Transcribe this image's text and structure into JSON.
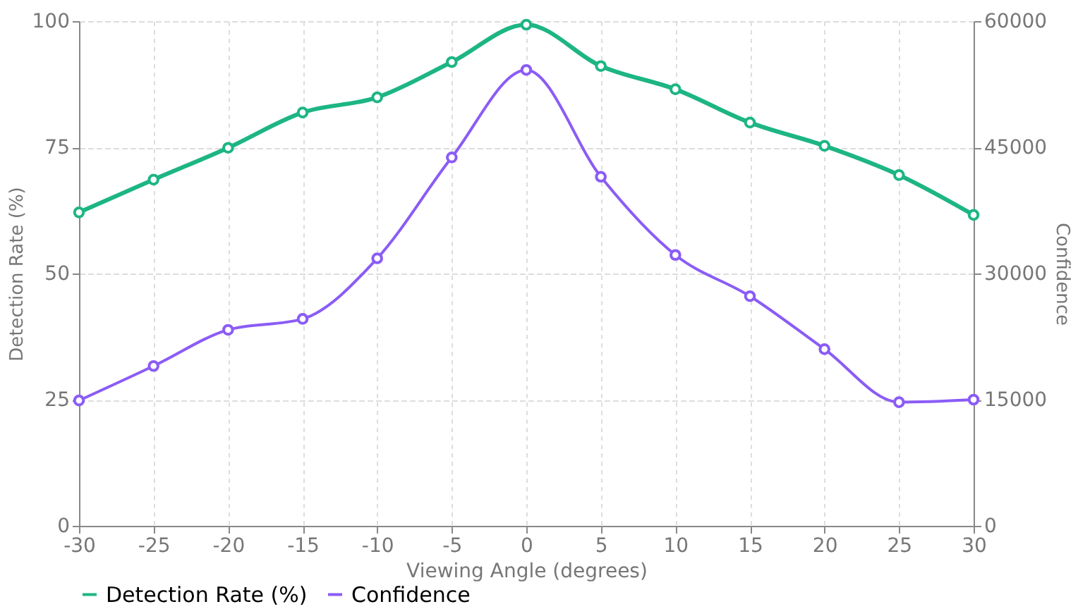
{
  "chart_data": {
    "type": "line",
    "xlabel": "Viewing Angle (degrees)",
    "ylabel": "Detection Rate (%)",
    "y2label": "Confidence",
    "x": [
      -30,
      -25,
      -20,
      -15,
      -10,
      -5,
      0,
      5,
      10,
      15,
      20,
      25,
      30
    ],
    "series": [
      {
        "name": "Detection Rate (%)",
        "color": "#1db584",
        "values": [
          62.1,
          68.6,
          74.9,
          81.9,
          84.9,
          91.9,
          99.3,
          91.1,
          86.5,
          79.9,
          75.3,
          69.5,
          61.6
        ]
      },
      {
        "name": "Confidence",
        "color": "#8b5cf6",
        "axis": "y2",
        "values": [
          14900,
          19000,
          23300,
          24600,
          31800,
          43800,
          54200,
          41500,
          32200,
          27300,
          21000,
          14700,
          15000
        ]
      }
    ],
    "xlim": [
      -30,
      30
    ],
    "xticks": [
      -30,
      -25,
      -20,
      -15,
      -10,
      -5,
      0,
      5,
      10,
      15,
      20,
      25,
      30
    ],
    "ylim": [
      0,
      100
    ],
    "yticks": [
      0,
      25,
      50,
      75,
      100
    ],
    "y2lim": [
      0,
      60000
    ],
    "y2ticks": [
      0,
      15000,
      30000,
      45000,
      60000
    ],
    "grid": true,
    "legend": "bottom",
    "marker": "circle",
    "line_style": "solid"
  }
}
